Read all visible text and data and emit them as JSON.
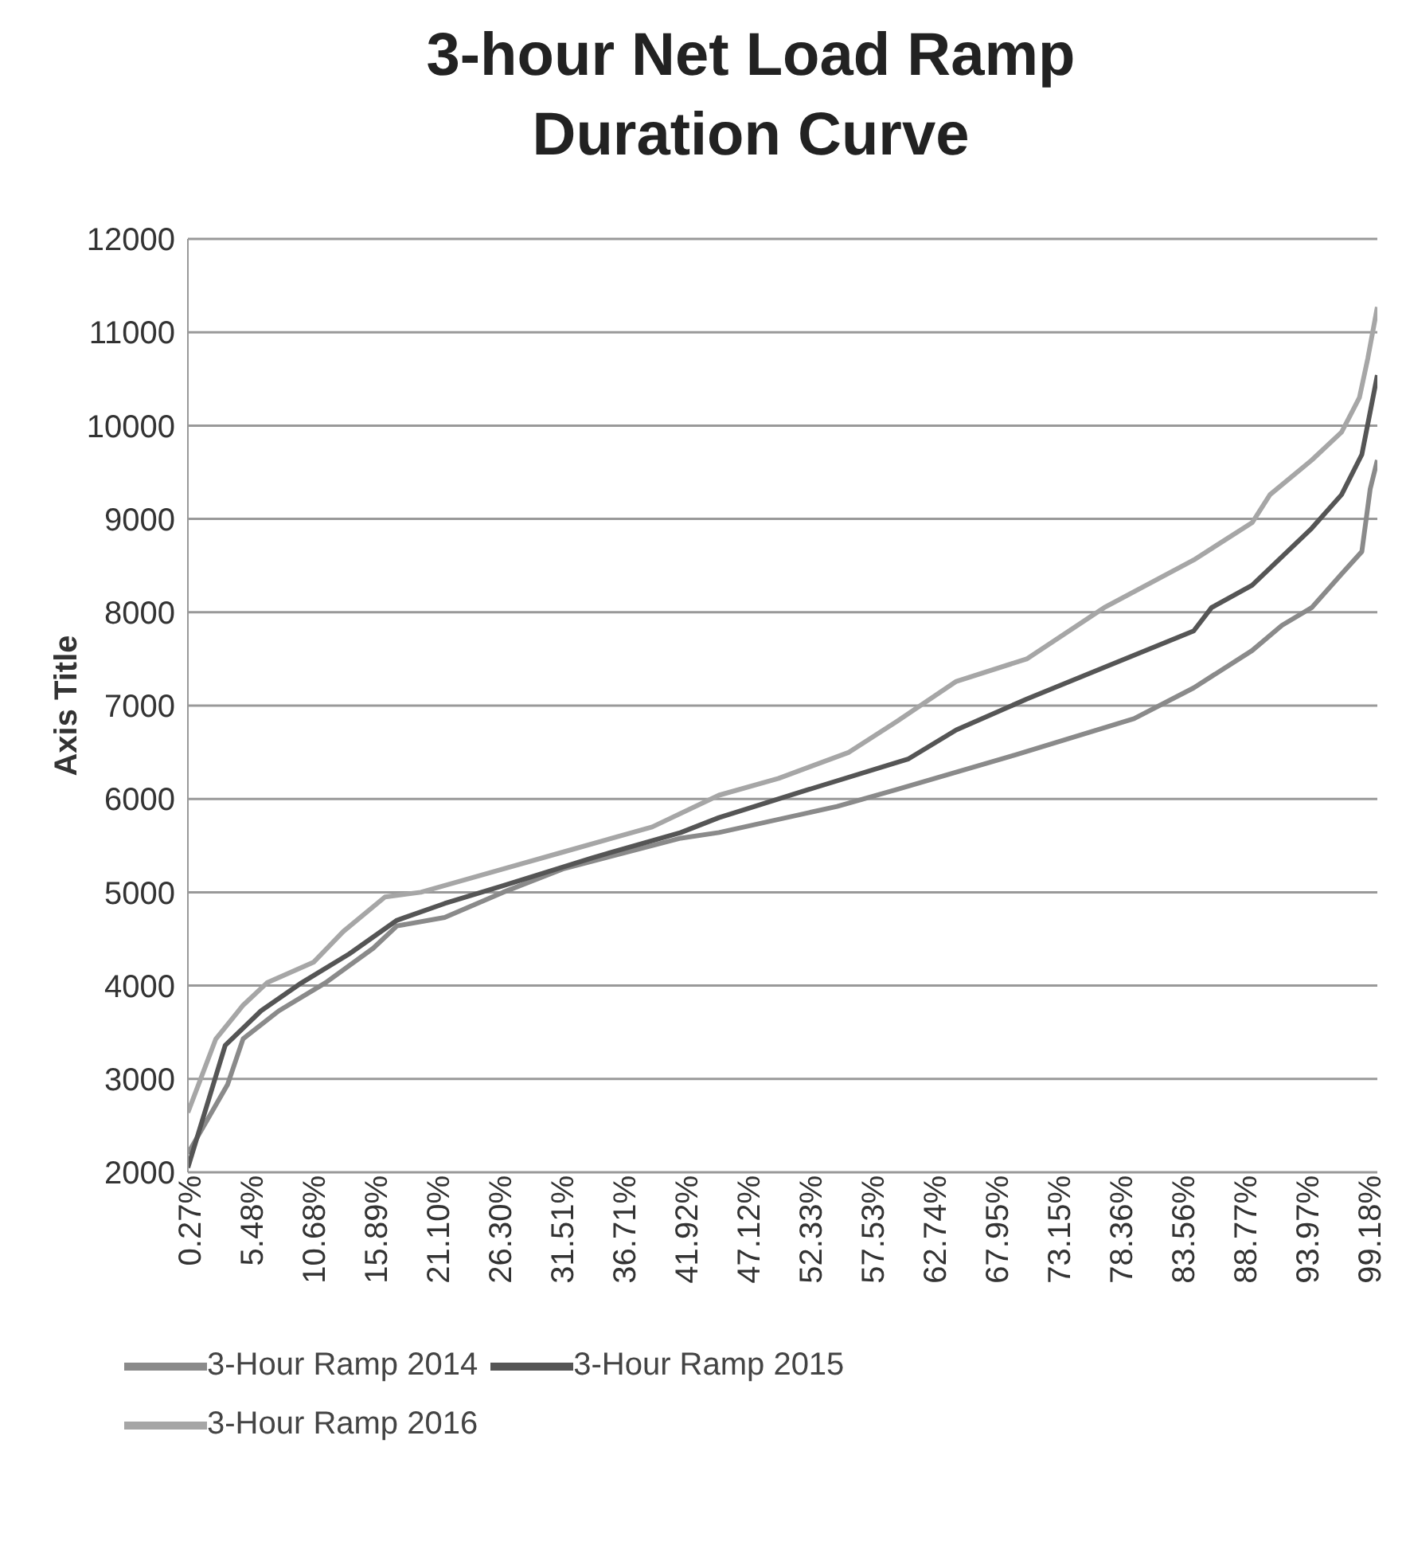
{
  "chart_data": {
    "type": "line",
    "title": "3-hour Net Load Ramp Duration Curve",
    "ylabel": "Axis Title",
    "xlim": [
      0.27,
      100
    ],
    "xticks": [
      {
        "value": 0.27,
        "label": "0.27%"
      },
      {
        "value": 5.48,
        "label": "5.48%"
      },
      {
        "value": 10.68,
        "label": "10.68%"
      },
      {
        "value": 15.89,
        "label": "15.89%"
      },
      {
        "value": 21.1,
        "label": "21.10%"
      },
      {
        "value": 26.3,
        "label": "26.30%"
      },
      {
        "value": 31.51,
        "label": "31.51%"
      },
      {
        "value": 36.71,
        "label": "36.71%"
      },
      {
        "value": 41.92,
        "label": "41.92%"
      },
      {
        "value": 47.12,
        "label": "47.12%"
      },
      {
        "value": 52.33,
        "label": "52.33%"
      },
      {
        "value": 57.53,
        "label": "57.53%"
      },
      {
        "value": 62.74,
        "label": "62.74%"
      },
      {
        "value": 67.95,
        "label": "67.95%"
      },
      {
        "value": 73.15,
        "label": "73.15%"
      },
      {
        "value": 78.36,
        "label": "78.36%"
      },
      {
        "value": 83.56,
        "label": "83.56%"
      },
      {
        "value": 88.77,
        "label": "88.77%"
      },
      {
        "value": 93.97,
        "label": "93.97%"
      },
      {
        "value": 99.18,
        "label": "99.18%"
      }
    ],
    "ylim": [
      2000,
      12000
    ],
    "yticks": [
      2000,
      3000,
      4000,
      5000,
      6000,
      7000,
      8000,
      9000,
      10000,
      11000,
      12000
    ],
    "grid": "y",
    "legend": "bottom",
    "marker": "none",
    "line_style": "solid",
    "series": [
      {
        "name": "3-Hour Ramp 2014",
        "color": "#8a8a8a",
        "x": [
          0.27,
          3.6,
          4.9,
          7.9,
          11.8,
          15.8,
          17.8,
          21.8,
          26.7,
          31.7,
          41.6,
          44.8,
          54.7,
          59.7,
          69.6,
          79.6,
          84.6,
          89.5,
          92,
          94.5,
          97,
          98.7,
          99.4,
          100
        ],
        "values": [
          2200,
          2940,
          3430,
          3730,
          4030,
          4400,
          4640,
          4730,
          5000,
          5250,
          5580,
          5640,
          5920,
          6100,
          6470,
          6860,
          7190,
          7590,
          7860,
          8050,
          8410,
          8650,
          9320,
          9630
        ]
      },
      {
        "name": "3-Hour Ramp 2015",
        "color": "#555555",
        "x": [
          0.27,
          3.4,
          6.4,
          9.8,
          13.8,
          17.8,
          21.8,
          26.7,
          34.2,
          41.6,
          44.8,
          52.3,
          60.7,
          64.7,
          70.6,
          77.1,
          84.6,
          86.1,
          89.5,
          94.5,
          97,
          98.7,
          100
        ],
        "values": [
          2050,
          3360,
          3730,
          4030,
          4340,
          4700,
          4880,
          5070,
          5370,
          5640,
          5800,
          6100,
          6430,
          6740,
          7070,
          7410,
          7800,
          8050,
          8290,
          8900,
          9260,
          9690,
          10540
        ]
      },
      {
        "name": "3-Hour Ramp 2016",
        "color": "#a6a6a6",
        "x": [
          0.27,
          2.6,
          4.9,
          6.9,
          10.8,
          13.3,
          16.8,
          19.8,
          26.7,
          31.7,
          39.2,
          44.8,
          49.8,
          55.7,
          59.7,
          64.7,
          70.6,
          77.1,
          84.6,
          89.5,
          91,
          94.5,
          97,
          98.5,
          99.2,
          100
        ],
        "values": [
          2640,
          3425,
          3790,
          4030,
          4250,
          4580,
          4950,
          5000,
          5250,
          5430,
          5700,
          6040,
          6220,
          6500,
          6830,
          7260,
          7500,
          8050,
          8560,
          8960,
          9260,
          9630,
          9930,
          10300,
          10720,
          11270
        ]
      }
    ]
  }
}
